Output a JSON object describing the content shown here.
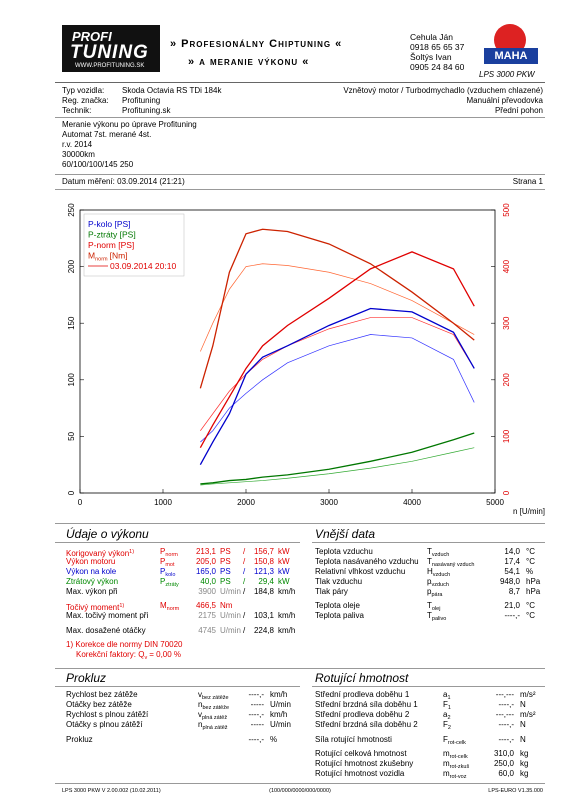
{
  "header": {
    "logo_top": "PROFI",
    "logo_main": "TUNING",
    "logo_url": "WWW.PROFITUNING.SK",
    "banner": [
      "» Profesionálny Chiptuning «",
      "» a meranie výkonu «"
    ],
    "contacts": [
      "Cehula Ján",
      "0918 65 65 37",
      "Šoltýs Ivan",
      "0905 24 84 60"
    ],
    "brand": "MAHA",
    "device": "LPS 3000 PKW"
  },
  "vehicle": {
    "rows": [
      [
        "Typ vozidla:",
        "Skoda Octavia RS TDi 184k"
      ],
      [
        "Reg. značka:",
        "Profituning"
      ],
      [
        "Technik:",
        "Profituning.sk"
      ]
    ],
    "right": [
      "Vznětový motor / Turbodmychadlo (vzduchem chlazené)",
      "Manuální převodovka",
      "Přední pohon"
    ]
  },
  "notes": [
    "Meranie výkonu po úprave Profituning",
    "Automat 7st. merané 4st.",
    "r.v. 2014",
    "30000km",
    "60/100/100/145 250"
  ],
  "date": "Datum měření: 03.09.2014 (21:21)",
  "page": "Strana 1",
  "chart_data": {
    "type": "line",
    "x": [
      1450,
      1600,
      1800,
      2000,
      2200,
      2500,
      3000,
      3500,
      4000,
      4500,
      4750
    ],
    "xlim": [
      0,
      5000
    ],
    "xticks": [
      0,
      1000,
      2000,
      3000,
      4000,
      5000
    ],
    "xlabel": "n [U/min]",
    "ylim": [
      0,
      250
    ],
    "yticks": [
      0,
      50,
      100,
      150,
      200,
      250
    ],
    "y2lim": [
      0,
      500
    ],
    "y2ticks": [
      0,
      100,
      200,
      300,
      400,
      500
    ],
    "y2color": "#e00000",
    "series": [
      {
        "name": "P-kolo [PS]",
        "color": "#0000cc",
        "values": [
          25,
          45,
          70,
          105,
          120,
          130,
          148,
          163,
          160,
          142,
          110
        ]
      },
      {
        "name": "P-ztráty [PS]",
        "color": "#007700",
        "values": [
          8,
          9,
          11,
          12,
          14,
          16,
          21,
          28,
          36,
          47,
          53
        ]
      },
      {
        "name": "P-norm [PS]",
        "color": "#e00000",
        "values": [
          40,
          60,
          85,
          110,
          130,
          148,
          172,
          198,
          213,
          198,
          165
        ]
      },
      {
        "name": "M",
        "name_sub": "norm",
        "name_unit": "[Nm]",
        "color": "#cc2200",
        "axis": "y2",
        "values": [
          185,
          260,
          390,
          458,
          466,
          462,
          440,
          405,
          355,
          300,
          270
        ]
      }
    ],
    "comparison": {
      "label": "03.09.2014 20:10",
      "color": "#e00000",
      "series": [
        {
          "color": "#ff6633",
          "axis": "y2",
          "values": [
            250,
            300,
            360,
            400,
            405,
            402,
            390,
            370,
            340,
            300,
            280
          ]
        },
        {
          "color": "#ff3333",
          "values": [
            55,
            70,
            90,
            105,
            118,
            130,
            145,
            155,
            155,
            140,
            110
          ]
        },
        {
          "color": "#3333ff",
          "values": [
            45,
            55,
            75,
            88,
            100,
            115,
            130,
            140,
            137,
            118,
            80
          ]
        },
        {
          "color": "#33aa33",
          "values": [
            7,
            8,
            9,
            10,
            11,
            13,
            17,
            22,
            28,
            36,
            40
          ]
        }
      ]
    }
  },
  "performance": {
    "title": "Údaje o výkonu",
    "rows": [
      {
        "label": "Korigovaný výkon",
        "mark": "1)",
        "sym": {
          "s": "P",
          "sub": "norm"
        },
        "v1": "213,1",
        "u1": "PS",
        "sep": "/",
        "v2": "156,7",
        "u2": "kW",
        "color": "#e00000"
      },
      {
        "label": "Výkon motoru",
        "sym": {
          "s": "P",
          "sub": "mot"
        },
        "v1": "205,0",
        "u1": "PS",
        "sep": "/",
        "v2": "150,8",
        "u2": "kW",
        "color": "#e00000"
      },
      {
        "label": "Výkon na kole",
        "sym": {
          "s": "P",
          "sub": "kolo"
        },
        "v1": "165,0",
        "u1": "PS",
        "sep": "/",
        "v2": "121,3",
        "u2": "kW",
        "color": "#0000cc"
      },
      {
        "label": "Ztrátový výkon",
        "sym": {
          "s": "P",
          "sub": "ztráty"
        },
        "v1": "40,0",
        "u1": "PS",
        "sep": "/",
        "v2": "29,4",
        "u2": "kW",
        "color": "#008800"
      },
      {
        "label": "Max. výkon při",
        "v1": "3900",
        "u1": "U/min",
        "sep": "/",
        "v2": "184,8",
        "u2": "km/h",
        "color": "#000000",
        "color1": "#888888"
      },
      {
        "label": "Točivý moment",
        "mark": "1)",
        "sym": {
          "s": "M",
          "sub": "norm"
        },
        "v1": "466,5",
        "u1": "Nm",
        "color": "#e00000"
      },
      {
        "label": "Max. točivý moment při",
        "v1": "2175",
        "u1": "U/min",
        "sep": "/",
        "v2": "103,1",
        "u2": "km/h",
        "color": "#000000",
        "color1": "#888888"
      },
      {
        "label": "Max. dosažené otáčky",
        "v1": "4745",
        "u1": "U/min",
        "sep": "/",
        "v2": "224,8",
        "u2": "km/h",
        "color": "#000000",
        "color1": "#888888"
      }
    ],
    "note": "1) Korekce dle normy DIN 70020",
    "factor": {
      "text": "Korekční faktory: Q",
      "sub": "v",
      "rest": "=   0,00 %"
    }
  },
  "external": {
    "title": "Vnější data",
    "rows": [
      {
        "label": "Teplota vzduchu",
        "sym": {
          "s": "T",
          "sub": "vzduch"
        },
        "v": "14,0",
        "u": "°C"
      },
      {
        "label": "Teplota nasávaného vzduchu",
        "sym": {
          "s": "T",
          "sub": "nasávaný vzduch"
        },
        "v": "17,4",
        "u": "°C"
      },
      {
        "label": "Relativní vlhkost vzduchu",
        "sym": {
          "s": "H",
          "sub": "vzduch"
        },
        "v": "54,1",
        "u": "%"
      },
      {
        "label": "Tlak vzduchu",
        "sym": {
          "s": "p",
          "sub": "vzduch"
        },
        "v": "948,0",
        "u": "hPa"
      },
      {
        "label": "Tlak páry",
        "sym": {
          "s": "p",
          "sub": "pára"
        },
        "v": "8,7",
        "u": "hPa"
      },
      {
        "label": "Teplota oleje",
        "sym": {
          "s": "T",
          "sub": "olej"
        },
        "v": "21,0",
        "u": "°C"
      },
      {
        "label": "Teplota paliva",
        "sym": {
          "s": "T",
          "sub": "palivo"
        },
        "v": "----,-",
        "u": "°C"
      }
    ]
  },
  "slip": {
    "title": "Prokluz",
    "rows": [
      {
        "label": "Rychlost bez zátěže",
        "sym": {
          "s": "v",
          "sub": "bez zátěže"
        },
        "v": "----,-",
        "u": "km/h"
      },
      {
        "label": "Otáčky bez zátěže",
        "sym": {
          "s": "n",
          "sub": "bez zátěže"
        },
        "v": "-----",
        "u": "U/min"
      },
      {
        "label": "Rychlost s plnou zátěží",
        "sym": {
          "s": "v",
          "sub": "plná zátěž"
        },
        "v": "----,-",
        "u": "km/h"
      },
      {
        "label": "Otáčky s plnou zátěží",
        "sym": {
          "s": "n",
          "sub": "plná zátěž"
        },
        "v": "-----",
        "u": "U/min"
      },
      {
        "label": "Prokluz",
        "v": "----,-",
        "u": "%"
      }
    ]
  },
  "rotating": {
    "title": "Rotující hmotnost",
    "rows": [
      {
        "label": "Střední prodleva doběhu 1",
        "sym": {
          "s": "a",
          "sub": "1"
        },
        "v": "---,---",
        "u": "m/s²"
      },
      {
        "label": "Střední brzdná síla doběhu 1",
        "sym": {
          "s": "F",
          "sub": "1"
        },
        "v": "----,-",
        "u": "N"
      },
      {
        "label": "Střední prodleva doběhu 2",
        "sym": {
          "s": "a",
          "sub": "2"
        },
        "v": "---,---",
        "u": "m/s²"
      },
      {
        "label": "Střední brzdná síla doběhu 2",
        "sym": {
          "s": "F",
          "sub": "2"
        },
        "v": "----,-",
        "u": "N"
      },
      {
        "label": "Síla rotující hmotnosti",
        "sym": {
          "s": "F",
          "sub": "rot-celk"
        },
        "v": "----,-",
        "u": "N"
      },
      {
        "label": "Rotující celková hmotnost",
        "sym": {
          "s": "m",
          "sub": "rot-celk"
        },
        "v": "310,0",
        "u": "kg"
      },
      {
        "label": "Rotující hmotnost zkušebny",
        "sym": {
          "s": "m",
          "sub": "rot-zkuš"
        },
        "v": "250,0",
        "u": "kg"
      },
      {
        "label": "Rotující hmotnost vozidla",
        "sym": {
          "s": "m",
          "sub": "rot-voz"
        },
        "v": "60,0",
        "u": "kg"
      }
    ]
  },
  "footer": [
    "LPS 3000 PKW V 2.00.002 (10.02.2011)",
    "(100/000/0000/000/0000)",
    "LPS-EURO V1.35.000"
  ]
}
